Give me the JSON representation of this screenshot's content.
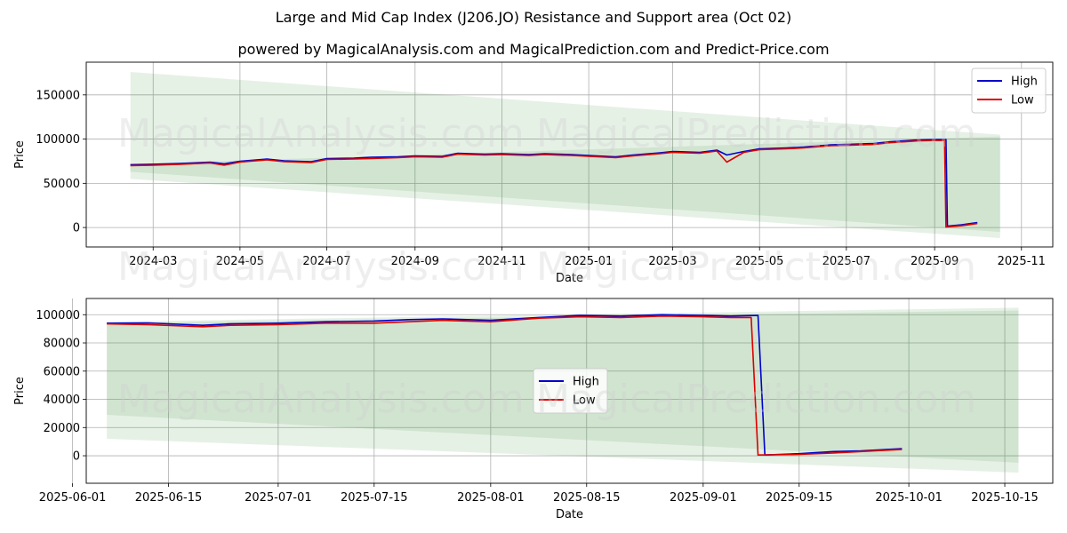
{
  "title": "Large and Mid Cap Index (J206.JO) Resistance and Support area (Oct 02)",
  "subtitle": "powered by MagicalAnalysis.com and MagicalPrediction.com and Predict-Price.com",
  "watermarks": [
    "MagicalAnalysis.com",
    "MagicalPrediction.com"
  ],
  "colors": {
    "high": "#0000cc",
    "low": "#dd0000",
    "band": "#2e8b2e"
  },
  "chart_data": [
    {
      "type": "line",
      "xlabel": "Date",
      "ylabel": "Price",
      "xlim": [
        "2024-01-14",
        "2025-11-23"
      ],
      "ylim": [
        -22000,
        187000
      ],
      "xticks": [
        "2024-03",
        "2024-05",
        "2024-07",
        "2024-09",
        "2024-11",
        "2025-01",
        "2025-03",
        "2025-05",
        "2025-07",
        "2025-09",
        "2025-11"
      ],
      "yticks": [
        0,
        50000,
        100000,
        150000
      ],
      "ytick_labels": [
        "0",
        "50000",
        "100000",
        "150000"
      ],
      "grid": true,
      "legend": {
        "position": "top-right",
        "entries": [
          "High",
          "Low"
        ]
      },
      "bands": [
        {
          "x": [
            "2024-02-14",
            "2025-10-17"
          ],
          "upper": [
            176000,
            105000
          ],
          "lower": [
            55000,
            -12000
          ],
          "opacity": 0.12
        },
        {
          "x": [
            "2024-02-14",
            "2025-10-17"
          ],
          "upper": [
            72000,
            103000
          ],
          "lower": [
            63000,
            -5000
          ],
          "opacity": 0.12
        }
      ],
      "series": [
        {
          "name": "High",
          "x": [
            "2024-02-14",
            "2024-03-01",
            "2024-03-20",
            "2024-04-10",
            "2024-04-20",
            "2024-05-01",
            "2024-05-20",
            "2024-06-01",
            "2024-06-20",
            "2024-07-01",
            "2024-07-20",
            "2024-08-01",
            "2024-08-20",
            "2024-09-01",
            "2024-09-20",
            "2024-10-01",
            "2024-10-20",
            "2024-11-01",
            "2024-11-20",
            "2024-12-01",
            "2024-12-20",
            "2025-01-01",
            "2025-01-20",
            "2025-02-01",
            "2025-02-20",
            "2025-03-01",
            "2025-03-20",
            "2025-04-01",
            "2025-04-08",
            "2025-04-20",
            "2025-05-01",
            "2025-05-20",
            "2025-06-01",
            "2025-06-20",
            "2025-07-01",
            "2025-07-20",
            "2025-08-01",
            "2025-08-20",
            "2025-09-01",
            "2025-09-09",
            "2025-09-10",
            "2025-09-20",
            "2025-10-01"
          ],
          "values": [
            71000,
            71500,
            72500,
            74000,
            72000,
            75000,
            77500,
            75500,
            74500,
            78000,
            78500,
            79500,
            80000,
            81000,
            80500,
            84000,
            83000,
            83500,
            82500,
            83500,
            82500,
            81500,
            80000,
            82000,
            84500,
            86000,
            85000,
            87500,
            82000,
            86000,
            89000,
            90000,
            91000,
            93500,
            94000,
            95000,
            97000,
            99000,
            99500,
            99500,
            1500,
            3000,
            5500
          ]
        },
        {
          "name": "Low",
          "x": [
            "2024-02-14",
            "2024-03-01",
            "2024-03-20",
            "2024-04-10",
            "2024-04-20",
            "2024-05-01",
            "2024-05-20",
            "2024-06-01",
            "2024-06-20",
            "2024-07-01",
            "2024-07-20",
            "2024-08-01",
            "2024-08-20",
            "2024-09-01",
            "2024-09-20",
            "2024-10-01",
            "2024-10-20",
            "2024-11-01",
            "2024-11-20",
            "2024-12-01",
            "2024-12-20",
            "2025-01-01",
            "2025-01-20",
            "2025-02-01",
            "2025-02-20",
            "2025-03-01",
            "2025-03-20",
            "2025-04-01",
            "2025-04-08",
            "2025-04-20",
            "2025-05-01",
            "2025-05-20",
            "2025-06-01",
            "2025-06-20",
            "2025-07-01",
            "2025-07-20",
            "2025-08-01",
            "2025-08-20",
            "2025-09-01",
            "2025-09-08",
            "2025-09-09",
            "2025-09-20",
            "2025-10-01"
          ],
          "values": [
            70000,
            70500,
            71500,
            73000,
            70500,
            74000,
            76500,
            74500,
            73500,
            77000,
            77500,
            78000,
            79000,
            80000,
            79500,
            83000,
            82000,
            82500,
            81500,
            82500,
            81500,
            80500,
            79000,
            81000,
            83500,
            85000,
            84000,
            86500,
            74000,
            85000,
            88000,
            89000,
            90000,
            92500,
            93000,
            94000,
            96000,
            98000,
            98500,
            98500,
            500,
            2000,
            4500
          ]
        }
      ]
    },
    {
      "type": "line",
      "xlabel": "Date",
      "ylabel": "Price",
      "xlim": [
        "2025-06-03",
        "2025-10-22"
      ],
      "ylim": [
        -19500,
        111500
      ],
      "xticks": [
        "2025-06-01",
        "2025-06-15",
        "2025-07-01",
        "2025-07-15",
        "2025-08-01",
        "2025-08-15",
        "2025-09-01",
        "2025-09-15",
        "2025-10-01",
        "2025-10-15"
      ],
      "yticks": [
        0,
        20000,
        40000,
        60000,
        80000,
        100000
      ],
      "ytick_labels": [
        "0",
        "20000",
        "40000",
        "60000",
        "80000",
        "100000"
      ],
      "grid": true,
      "legend": {
        "position": "center",
        "entries": [
          "High",
          "Low"
        ]
      },
      "bands": [
        {
          "x": [
            "2025-06-06",
            "2025-10-17"
          ],
          "upper": [
            95000,
            105000
          ],
          "lower": [
            12000,
            -12000
          ],
          "opacity": 0.12
        },
        {
          "x": [
            "2025-06-06",
            "2025-10-17"
          ],
          "upper": [
            94000,
            103000
          ],
          "lower": [
            29000,
            -5000
          ],
          "opacity": 0.12
        }
      ],
      "series": [
        {
          "name": "High",
          "x": [
            "2025-06-06",
            "2025-06-12",
            "2025-06-20",
            "2025-06-24",
            "2025-07-01",
            "2025-07-08",
            "2025-07-15",
            "2025-07-20",
            "2025-07-25",
            "2025-08-01",
            "2025-08-08",
            "2025-08-14",
            "2025-08-20",
            "2025-08-26",
            "2025-09-01",
            "2025-09-05",
            "2025-09-09",
            "2025-09-10",
            "2025-09-15",
            "2025-09-20",
            "2025-09-24",
            "2025-09-30"
          ],
          "values": [
            94000,
            94200,
            92500,
            93500,
            94000,
            95000,
            95500,
            96500,
            97000,
            96000,
            98000,
            99500,
            99000,
            100000,
            99500,
            99000,
            99500,
            500,
            1500,
            3000,
            3500,
            5000
          ]
        },
        {
          "name": "Low",
          "x": [
            "2025-06-06",
            "2025-06-12",
            "2025-06-20",
            "2025-06-24",
            "2025-07-01",
            "2025-07-08",
            "2025-07-15",
            "2025-07-20",
            "2025-07-25",
            "2025-08-01",
            "2025-08-08",
            "2025-08-14",
            "2025-08-20",
            "2025-08-26",
            "2025-09-01",
            "2025-09-05",
            "2025-09-08",
            "2025-09-09",
            "2025-09-15",
            "2025-09-20",
            "2025-09-24",
            "2025-09-30"
          ],
          "values": [
            93500,
            93000,
            91500,
            92500,
            93000,
            94000,
            94000,
            95000,
            96000,
            95000,
            97500,
            98500,
            98000,
            99000,
            98500,
            98000,
            98000,
            500,
            1000,
            2000,
            3000,
            4500
          ]
        }
      ]
    }
  ]
}
